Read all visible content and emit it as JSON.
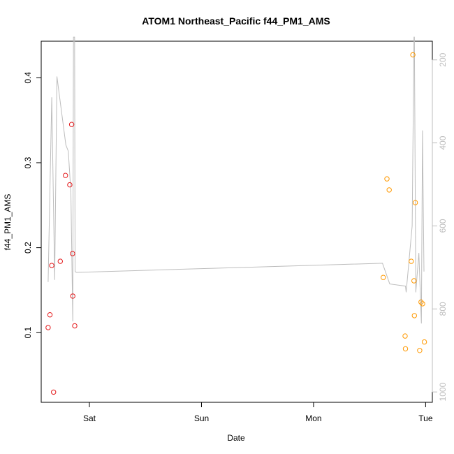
{
  "chart_data": {
    "type": "scatter",
    "title": "ATOM1 Northeast_Pacific f44_PM1_AMS",
    "xlabel": "Date",
    "ylabel": "f44_PM1_AMS",
    "x_ticks": [
      "Sat",
      "Sun",
      "Mon",
      "Tue"
    ],
    "x_tick_days": [
      1,
      2,
      3,
      4
    ],
    "xlim": [
      0.57,
      4.06
    ],
    "ylim": [
      0.018,
      0.443
    ],
    "y_ticks": [
      0.1,
      0.2,
      0.3,
      0.4
    ],
    "y_tick_labels": [
      "0.1",
      "0.2",
      "0.3",
      "0.4"
    ],
    "y2_ticks": [
      200,
      400,
      600,
      800,
      1000
    ],
    "y2_tick_labels": [
      "200",
      "400",
      "600",
      "800",
      "1000"
    ],
    "y2lim": [
      1025,
      155
    ],
    "y2_reversed": true,
    "grid": false,
    "colors": {
      "series_red": "#e41a1c",
      "series_orange": "#ff9900",
      "altitude_line": "#bdbdbd"
    },
    "series": [
      {
        "color": "#e41a1c",
        "x": [
          0.632,
          0.648,
          0.664,
          0.68,
          0.74,
          0.786,
          0.825,
          0.842,
          0.852
        ],
        "y": [
          0.106,
          0.121,
          0.179,
          0.03,
          0.184,
          0.285,
          0.274,
          0.345,
          0.143
        ],
        "x_extra": [
          0.85,
          0.869
        ],
        "y_extra": [
          0.193,
          0.108
        ]
      },
      {
        "color": "#ff9900",
        "x": [
          3.622,
          3.655,
          3.675,
          3.817,
          3.82,
          3.872,
          3.886,
          3.896,
          3.9,
          3.908,
          3.947,
          3.959,
          3.973,
          3.989
        ],
        "y": [
          0.165,
          0.281,
          0.268,
          0.096,
          0.081,
          0.184,
          0.427,
          0.161,
          0.12,
          0.253,
          0.079,
          0.136,
          0.134,
          0.089
        ]
      }
    ],
    "altitude_line": {
      "x": [
        0.632,
        0.664,
        0.69,
        0.71,
        0.79,
        0.812,
        0.835,
        0.852,
        0.858,
        0.868,
        0.872,
        0.884,
        3.615,
        3.68,
        3.82,
        3.826,
        3.88,
        3.896,
        3.9,
        3.912,
        3.94,
        3.962,
        3.972,
        3.985
      ],
      "y": [
        735,
        290,
        730,
        240,
        405,
        420,
        520,
        830,
        145,
        145,
        710,
        712,
        690,
        740,
        745,
        760,
        600,
        145,
        145,
        760,
        665,
        835,
        370,
        710
      ]
    }
  }
}
